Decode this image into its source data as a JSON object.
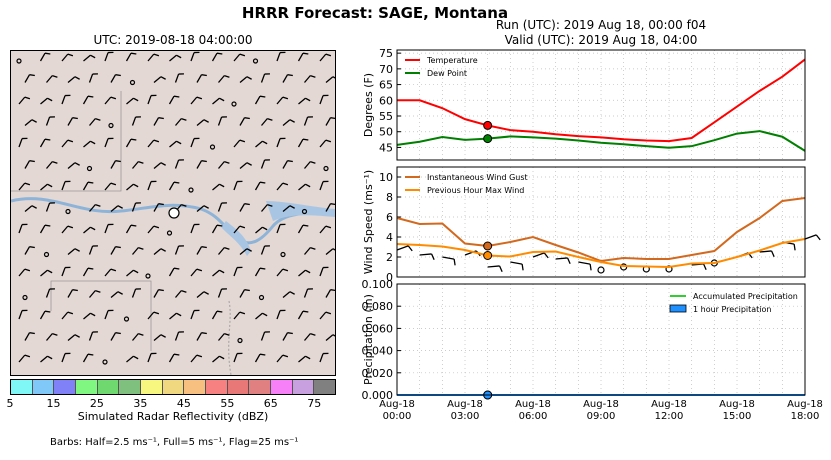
{
  "title": "HRRR Forecast: SAGE, Montana",
  "map": {
    "utc_label": "UTC: 2019-08-18 04:00:00",
    "colorbar": {
      "label": "Simulated Radar Reflectivity (dBZ)",
      "ticks": [
        "5",
        "15",
        "25",
        "35",
        "45",
        "55",
        "65",
        "75"
      ],
      "colors": [
        "#7ff7f7",
        "#7fc8f7",
        "#8080f7",
        "#80f780",
        "#6fd86f",
        "#7fc07f",
        "#f7f77f",
        "#f0d880",
        "#f7c080",
        "#f78080",
        "#e87878",
        "#e08080",
        "#f77ff7",
        "#c8a0e0",
        "#808080"
      ]
    }
  },
  "run_label": {
    "line1": "Run (UTC): 2019 Aug 18, 00:00 f04",
    "line2": "Valid (UTC): 2019 Aug 18, 04:00"
  },
  "barb_note": "Barbs: Half=2.5 ms⁻¹, Full=5 ms⁻¹, Flag=25 ms⁻¹",
  "chart_data": [
    {
      "type": "line",
      "ylabel": "Degrees (F)",
      "ylim": [
        41,
        76
      ],
      "yticks": [
        45,
        50,
        55,
        60,
        65,
        70,
        75
      ],
      "x": [
        0,
        1,
        2,
        3,
        4,
        5,
        6,
        7,
        8,
        9,
        10,
        11,
        12,
        13,
        14,
        15,
        16,
        17,
        18
      ],
      "series": [
        {
          "name": "Temperature",
          "color": "#ff0000",
          "values": [
            60,
            60,
            57.5,
            54,
            52,
            50.5,
            50,
            49.2,
            48.6,
            48.2,
            47.6,
            47.2,
            47,
            48,
            53,
            58,
            63,
            67.5,
            73
          ]
        },
        {
          "name": "Dew Point",
          "color": "#008000",
          "values": [
            45.8,
            46.8,
            48.3,
            47.4,
            47.8,
            48.5,
            48.2,
            47.8,
            47.2,
            46.5,
            46,
            45.4,
            44.9,
            45.4,
            47.3,
            49.4,
            50.2,
            48.4,
            43.9
          ]
        }
      ],
      "highlight_x": 4,
      "legend": "top-left"
    },
    {
      "type": "line",
      "ylabel": "Wind Speed (ms⁻¹)",
      "ylim": [
        0,
        11
      ],
      "yticks": [
        0,
        2,
        4,
        6,
        8,
        10
      ],
      "x": [
        0,
        1,
        2,
        3,
        4,
        5,
        6,
        7,
        8,
        9,
        10,
        11,
        12,
        13,
        14,
        15,
        16,
        17,
        18
      ],
      "series": [
        {
          "name": "Instantaneous Wind Gust",
          "color": "#d2691e",
          "values": [
            5.9,
            5.3,
            5.35,
            3.35,
            3.1,
            3.5,
            4.0,
            3.2,
            2.45,
            1.6,
            1.9,
            1.8,
            1.8,
            2.2,
            2.6,
            4.5,
            5.9,
            7.6,
            7.9
          ]
        },
        {
          "name": "Previous Hour Max Wind",
          "color": "#ff8c00",
          "values": [
            3.3,
            3.2,
            3.05,
            2.7,
            2.15,
            2.05,
            2.5,
            2.55,
            2.0,
            1.5,
            1.1,
            1.05,
            1.0,
            1.35,
            1.4,
            2.0,
            2.65,
            3.4,
            3.8
          ]
        }
      ],
      "barbs_y": [
        2.7,
        2.2,
        2.0,
        2.2,
        1.0,
        1.5,
        2.0,
        1.8,
        1.5,
        0.7,
        1.0,
        0.8,
        0.8,
        1.2,
        1.4,
        2.0,
        2.5,
        3.5,
        3.8
      ],
      "calm_points": [
        9,
        10,
        11,
        12,
        14
      ],
      "highlight_x": 4,
      "legend": "top-left"
    },
    {
      "type": "area",
      "ylabel": "Precipitation (in)",
      "ylim": [
        0,
        0.1
      ],
      "yticks": [
        "0.000",
        "0.020",
        "0.040",
        "0.060",
        "0.080",
        "0.100"
      ],
      "x": [
        0,
        1,
        2,
        3,
        4,
        5,
        6,
        7,
        8,
        9,
        10,
        11,
        12,
        13,
        14,
        15,
        16,
        17,
        18
      ],
      "series": [
        {
          "name": "Accumulated Precipitation",
          "color": "#32cd32",
          "values": [
            0,
            0,
            0,
            0,
            0,
            0,
            0,
            0,
            0,
            0,
            0,
            0,
            0,
            0,
            0,
            0,
            0,
            0,
            0
          ]
        },
        {
          "name": "1 hour Precipitation",
          "color": "#1e90ff",
          "values": [
            0,
            0,
            0,
            0,
            0,
            0,
            0,
            0,
            0,
            0,
            0,
            0,
            0,
            0,
            0,
            0,
            0,
            0,
            0
          ]
        }
      ],
      "xticks": [
        {
          "x": 0,
          "line1": "Aug-18",
          "line2": "00:00"
        },
        {
          "x": 3,
          "line1": "Aug-18",
          "line2": "03:00"
        },
        {
          "x": 6,
          "line1": "Aug-18",
          "line2": "06:00"
        },
        {
          "x": 9,
          "line1": "Aug-18",
          "line2": "09:00"
        },
        {
          "x": 12,
          "line1": "Aug-18",
          "line2": "12:00"
        },
        {
          "x": 15,
          "line1": "Aug-18",
          "line2": "15:00"
        },
        {
          "x": 18,
          "line1": "Aug-18",
          "line2": "18:00"
        }
      ],
      "highlight_x": 4,
      "legend": "top-right"
    }
  ]
}
